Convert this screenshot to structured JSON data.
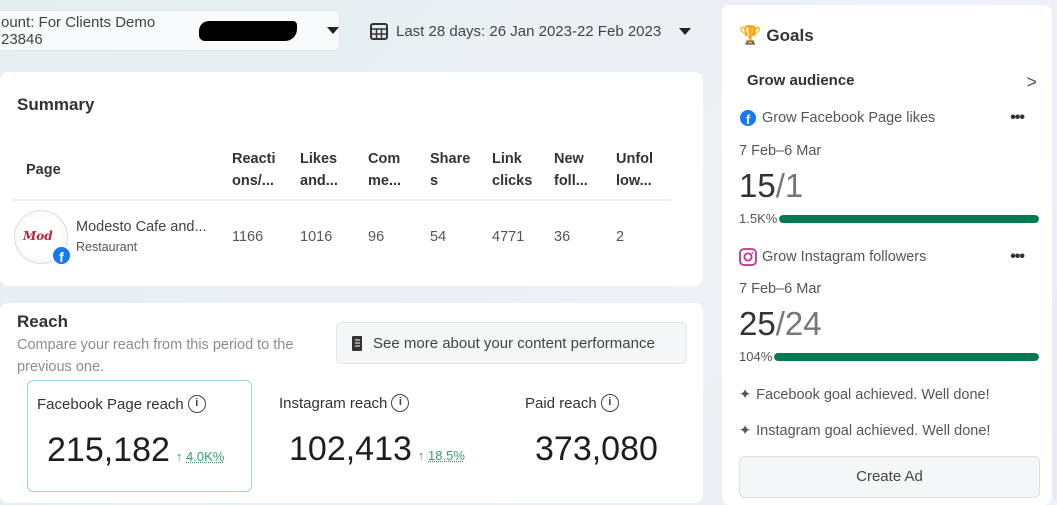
{
  "header": {
    "account_label": "ount: For Clients Demo 23846",
    "date_range": "Last 28 days: 26 Jan 2023-22 Feb 2023"
  },
  "summary": {
    "title": "Summary",
    "columns": [
      "Page",
      "Reacti ons/...",
      "Likes and...",
      "Com me...",
      "Share s",
      "Link clicks",
      "New foll...",
      "Unfol low..."
    ],
    "row": {
      "page_name": "Modesto Cafe and...",
      "category": "Restaurant",
      "logo_text": "Mod",
      "values": [
        "1166",
        "1016",
        "96",
        "54",
        "4771",
        "36",
        "2"
      ]
    }
  },
  "reach": {
    "title": "Reach",
    "subtitle": "Compare your reach from this period to the previous one.",
    "see_more": "See more about your content performance",
    "metrics": [
      {
        "label": "Facebook Page reach",
        "value": "215,182",
        "change": "4.0K%"
      },
      {
        "label": "Instagram reach",
        "value": "102,413",
        "change": "18.5%"
      },
      {
        "label": "Paid reach",
        "value": "373,080",
        "change": ""
      }
    ]
  },
  "goals": {
    "title": "Goals",
    "section": "Grow audience",
    "items": [
      {
        "label": "Grow Facebook Page likes",
        "period": "7 Feb–6 Mar",
        "current": "15",
        "target": "/1",
        "percent_label": "1.5K%",
        "progress": 100
      },
      {
        "label": "Grow Instagram followers",
        "period": "7 Feb–6 Mar",
        "current": "25",
        "target": "/24",
        "percent_label": "104%",
        "progress": 100
      }
    ],
    "achievements": [
      "Facebook goal achieved. Well done!",
      "Instagram goal achieved. Well done!"
    ],
    "create_ad": "Create Ad"
  },
  "colors": {
    "accent_green": "#077a4f",
    "facebook_blue": "#1877f2",
    "instagram_pink": "#c13584",
    "positive": "#31a26d"
  }
}
